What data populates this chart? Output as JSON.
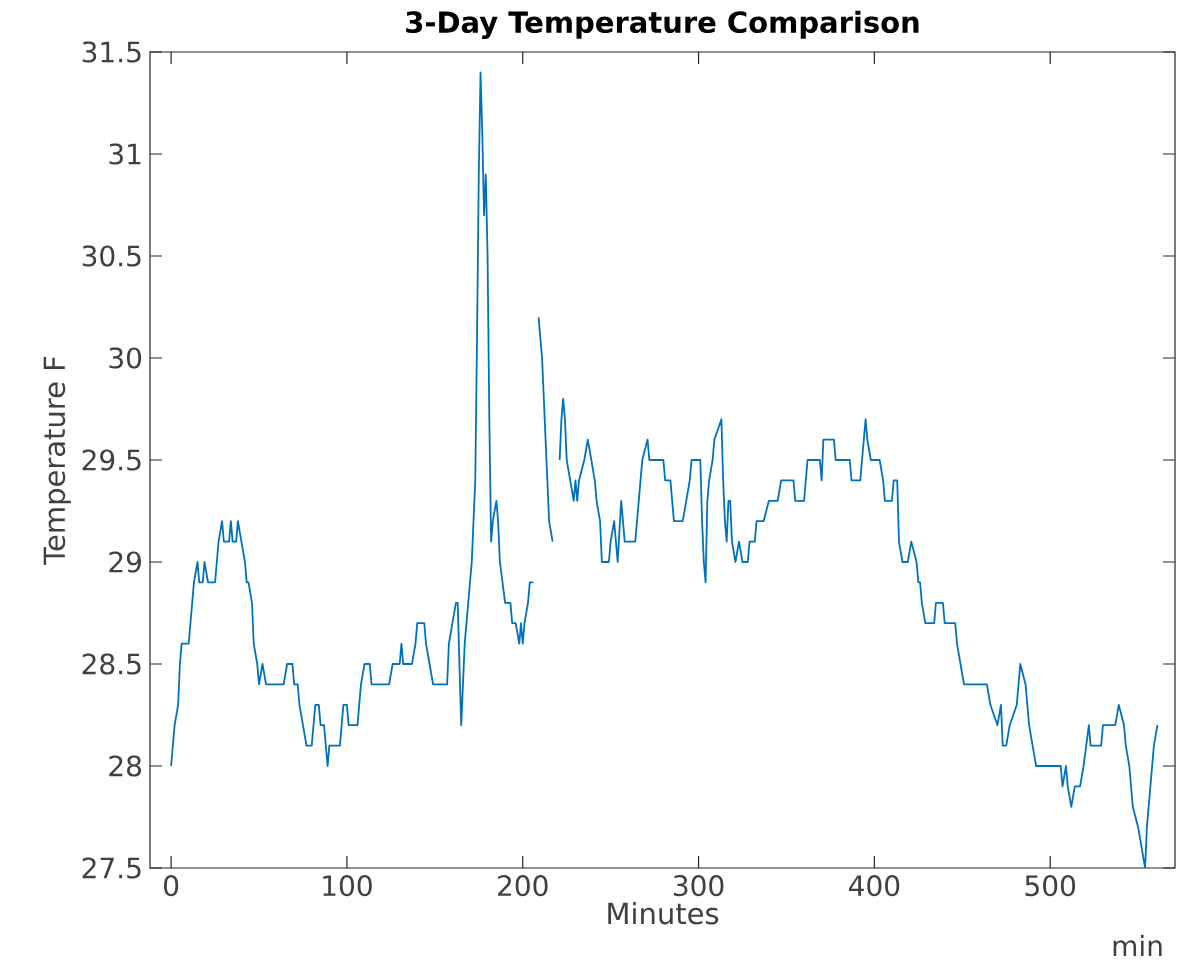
{
  "chart_data": {
    "type": "line",
    "title": "3-Day Temperature Comparison",
    "xlabel": "Minutes",
    "ylabel": "Temperature F",
    "annotations": [
      "min"
    ],
    "xlim": [
      -12,
      571
    ],
    "ylim": [
      27.5,
      31.5
    ],
    "xticks": [
      0,
      100,
      200,
      300,
      400,
      500
    ],
    "yticks": [
      27.5,
      28,
      28.5,
      29,
      29.5,
      30,
      30.5,
      31,
      31.5
    ],
    "color": "#0072bd",
    "x": [
      0,
      1,
      2,
      4,
      5,
      6,
      10,
      11,
      12,
      13,
      15,
      16,
      18,
      19,
      21,
      25,
      26,
      27,
      29,
      30,
      33,
      34,
      35,
      37,
      38,
      40,
      42,
      43,
      44,
      46,
      47,
      49,
      50,
      52,
      54,
      64,
      66,
      69,
      70,
      72,
      73,
      75,
      77,
      80,
      81,
      82,
      84,
      85,
      87,
      88,
      89,
      90,
      96,
      97,
      98,
      100,
      101,
      106,
      107,
      108,
      110,
      113,
      114,
      124,
      126,
      130,
      131,
      132,
      137,
      139,
      140,
      144,
      145,
      147,
      149,
      157,
      158,
      160,
      162,
      163,
      165,
      167,
      169,
      171,
      172,
      173,
      174,
      175,
      176,
      177,
      178,
      179,
      180,
      181,
      182,
      183,
      185,
      186,
      187,
      190,
      193,
      194,
      196,
      198,
      199,
      200,
      201,
      203,
      204,
      206,
      207,
      209,
      210,
      211,
      212,
      213,
      214,
      215,
      217,
      219,
      221,
      222,
      223,
      224,
      225,
      227,
      229,
      230,
      231,
      232,
      235,
      237,
      239,
      241,
      242,
      244,
      245,
      247,
      249,
      250,
      252,
      254,
      256,
      257,
      258,
      264,
      265,
      266,
      267,
      268,
      271,
      272,
      280,
      281,
      284,
      285,
      286,
      291,
      293,
      295,
      296,
      301,
      302,
      303,
      304,
      305,
      306,
      308,
      309,
      313,
      314,
      315,
      316,
      317,
      318,
      319,
      321,
      323,
      325,
      328,
      329,
      332,
      333,
      337,
      340,
      345,
      347,
      354,
      355,
      360,
      361,
      362,
      369,
      370,
      371,
      377,
      378,
      386,
      387,
      392,
      393,
      394,
      395,
      396,
      398,
      403,
      405,
      406,
      410,
      411,
      413,
      414,
      416,
      419,
      421,
      424,
      425,
      426,
      427,
      429,
      434,
      435,
      439,
      440,
      446,
      447,
      449,
      451,
      464,
      466,
      470,
      472,
      473,
      475,
      477,
      481,
      483,
      486,
      488,
      490,
      492,
      506,
      507,
      509,
      510,
      512,
      514,
      517,
      519,
      522,
      523,
      529,
      530,
      537,
      539,
      542,
      543,
      545,
      547,
      550,
      552,
      554,
      555,
      557,
      559,
      561
    ],
    "values": [
      28.0,
      28.1,
      28.2,
      28.3,
      28.5,
      28.6,
      28.6,
      28.7,
      28.8,
      28.9,
      29.0,
      28.9,
      28.9,
      29.0,
      28.9,
      28.9,
      29.0,
      29.1,
      29.2,
      29.1,
      29.1,
      29.2,
      29.1,
      29.1,
      29.2,
      29.1,
      29.0,
      28.9,
      28.9,
      28.8,
      28.6,
      28.5,
      28.4,
      28.5,
      28.4,
      28.4,
      28.5,
      28.5,
      28.4,
      28.4,
      28.3,
      28.2,
      28.1,
      28.1,
      28.2,
      28.3,
      28.3,
      28.2,
      28.2,
      28.1,
      28.0,
      28.1,
      28.1,
      28.2,
      28.3,
      28.3,
      28.2,
      28.2,
      28.3,
      28.4,
      28.5,
      28.5,
      28.4,
      28.4,
      28.5,
      28.5,
      28.6,
      28.5,
      28.5,
      28.6,
      28.7,
      28.7,
      28.6,
      28.5,
      28.4,
      28.4,
      28.6,
      28.7,
      28.8,
      28.8,
      28.2,
      28.6,
      28.8,
      29.0,
      29.2,
      29.4,
      30.1,
      30.9,
      31.4,
      31.1,
      30.7,
      30.9,
      30.5,
      29.7,
      29.1,
      29.2,
      29.3,
      29.2,
      29.0,
      28.8,
      28.8,
      28.7,
      28.7,
      28.6,
      28.7,
      28.6,
      28.7,
      28.8,
      28.9,
      28.9,
      null,
      30.2,
      30.1,
      30.0,
      29.8,
      29.6,
      29.4,
      29.2,
      29.1,
      null,
      29.5,
      29.7,
      29.8,
      29.7,
      29.5,
      29.4,
      29.3,
      29.4,
      29.3,
      29.4,
      29.5,
      29.6,
      29.5,
      29.4,
      29.3,
      29.2,
      29.0,
      29.0,
      29.0,
      29.1,
      29.2,
      29.0,
      29.3,
      29.2,
      29.1,
      29.1,
      29.2,
      29.3,
      29.4,
      29.5,
      29.6,
      29.5,
      29.5,
      29.4,
      29.4,
      29.3,
      29.2,
      29.2,
      29.3,
      29.4,
      29.5,
      29.5,
      29.2,
      29.0,
      28.9,
      29.3,
      29.4,
      29.5,
      29.6,
      29.7,
      29.4,
      29.2,
      29.1,
      29.3,
      29.3,
      29.1,
      29.0,
      29.1,
      29.0,
      29.0,
      29.1,
      29.1,
      29.2,
      29.2,
      29.3,
      29.3,
      29.4,
      29.4,
      29.3,
      29.3,
      29.4,
      29.5,
      29.5,
      29.4,
      29.6,
      29.6,
      29.5,
      29.5,
      29.4,
      29.4,
      29.5,
      29.6,
      29.7,
      29.6,
      29.5,
      29.5,
      29.4,
      29.3,
      29.3,
      29.4,
      29.4,
      29.1,
      29.0,
      29.0,
      29.1,
      29.0,
      28.9,
      28.9,
      28.8,
      28.7,
      28.7,
      28.8,
      28.8,
      28.7,
      28.7,
      28.6,
      28.5,
      28.4,
      28.4,
      28.3,
      28.2,
      28.3,
      28.1,
      28.1,
      28.2,
      28.3,
      28.5,
      28.4,
      28.2,
      28.1,
      28.0,
      28.0,
      27.9,
      28.0,
      27.9,
      27.8,
      27.9,
      27.9,
      28.0,
      28.2,
      28.1,
      28.1,
      28.2,
      28.2,
      28.3,
      28.2,
      28.1,
      28.0,
      27.8,
      27.7,
      27.6,
      27.5,
      27.7,
      27.9,
      28.1,
      28.2
    ]
  }
}
